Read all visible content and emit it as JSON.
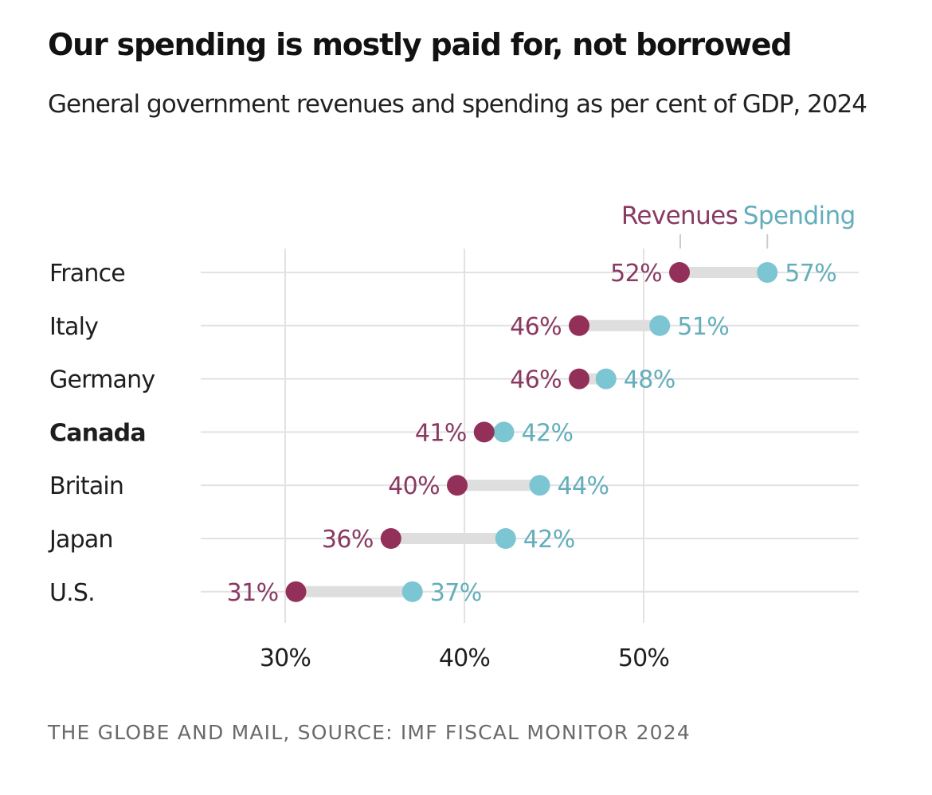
{
  "colors": {
    "revenue_dot": "#93305a",
    "revenue_text": "#8a3a62",
    "spending_dot": "#7cc5d3",
    "spending_text": "#64aebb",
    "connector": "#dedede",
    "grid": "#e2e2e2"
  },
  "chart_data": {
    "type": "dumbbell",
    "title": "Our spending is mostly paid for, not borrowed",
    "subtitle": "General government revenues and spending as per cent of GDP, 2024",
    "source": "THE GLOBE AND MAIL, SOURCE: IMF FISCAL MONITOR 2024",
    "xlabel": "",
    "ylabel": "",
    "xlim": [
      25.5,
      62
    ],
    "x_ticks": [
      30,
      40,
      50
    ],
    "x_tick_labels": [
      "30%",
      "40%",
      "50%"
    ],
    "grid": true,
    "legend_placement": "top-right",
    "highlight_category": "Canada",
    "categories": [
      "France",
      "Italy",
      "Germany",
      "Canada",
      "Britain",
      "Japan",
      "U.S."
    ],
    "series": [
      {
        "name": "Revenues",
        "values": [
          52.0,
          46.4,
          46.4,
          41.1,
          39.6,
          35.9,
          30.6
        ],
        "labels": [
          "52%",
          "46%",
          "46%",
          "41%",
          "40%",
          "36%",
          "31%"
        ]
      },
      {
        "name": "Spending",
        "values": [
          56.9,
          50.9,
          47.9,
          42.2,
          44.2,
          42.3,
          37.1
        ],
        "labels": [
          "57%",
          "51%",
          "48%",
          "42%",
          "44%",
          "42%",
          "37%"
        ]
      }
    ]
  }
}
